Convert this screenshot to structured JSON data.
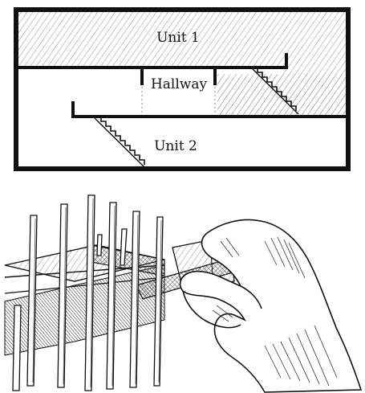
{
  "section_diagram": {
    "labels": {
      "unit_1": "Unit 1",
      "hallway": "Hallway",
      "unit_2": "Unit 2"
    }
  },
  "model_sketch": {
    "subject": "hand placing a floor slab into a stick frame model",
    "style": "pen and ink hatching"
  },
  "colors": {
    "ink": "#111111",
    "hatch": "#555555",
    "paper": "#ffffff"
  }
}
